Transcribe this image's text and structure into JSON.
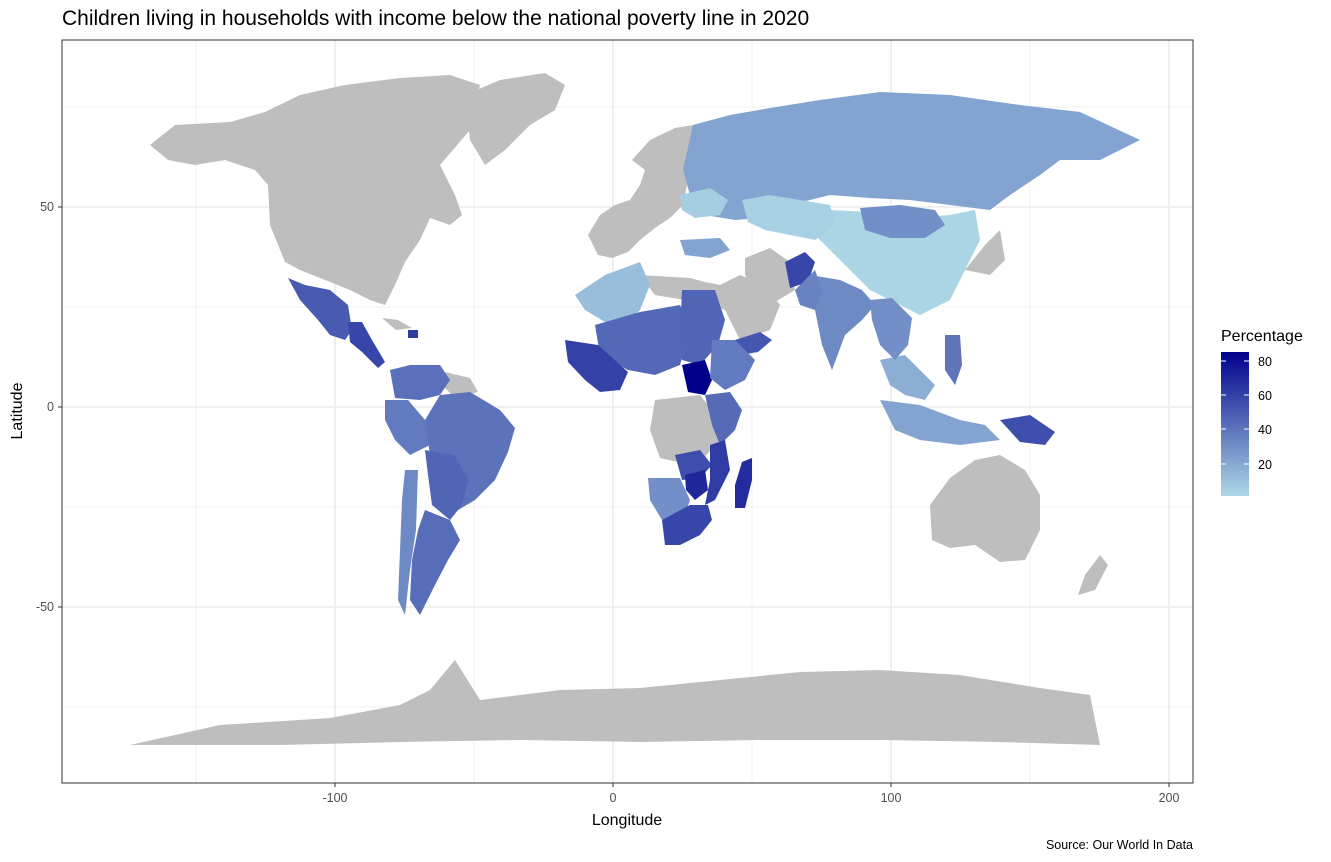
{
  "chart_data": {
    "type": "choropleth-map",
    "title": "Children living in households with income below the national poverty line in 2020",
    "xlabel": "Longitude",
    "ylabel": "Latitude",
    "caption": "Source: Our World In Data",
    "xlim": [
      -200,
      208
    ],
    "ylim": [
      -90,
      84
    ],
    "x_ticks": [
      -100,
      0,
      100,
      200
    ],
    "x_tick_labels": [
      "-100",
      "0",
      "100",
      "200"
    ],
    "y_ticks": [
      50,
      0,
      -50
    ],
    "y_tick_labels": [
      "50",
      "0",
      "-50"
    ],
    "grid": "on",
    "legend": {
      "title": "Percentage",
      "placement": "right",
      "ticks": [
        80,
        60,
        40,
        20
      ],
      "tick_labels": [
        "80",
        "60",
        "40",
        "20"
      ],
      "range": [
        2,
        85
      ],
      "color_low": "#add8e6",
      "color_high": "#00008b"
    },
    "nodata_color": "#bebebe",
    "regions": [
      {
        "name": "Mexico",
        "value": 50
      },
      {
        "name": "Central America",
        "value": 58
      },
      {
        "name": "Haiti",
        "value": 62
      },
      {
        "name": "Colombia / Venezuela",
        "value": 42
      },
      {
        "name": "Peru / Ecuador",
        "value": 38
      },
      {
        "name": "Brazil",
        "value": 41
      },
      {
        "name": "Bolivia / Paraguay",
        "value": 46
      },
      {
        "name": "Argentina",
        "value": 43
      },
      {
        "name": "Chile",
        "value": 32
      },
      {
        "name": "Russia",
        "value": 22
      },
      {
        "name": "China",
        "value": 3
      },
      {
        "name": "Mongolia",
        "value": 30
      },
      {
        "name": "Kazakhstan",
        "value": 5
      },
      {
        "name": "Ukraine",
        "value": 6
      },
      {
        "name": "Turkey",
        "value": 22
      },
      {
        "name": "India",
        "value": 32
      },
      {
        "name": "Afghanistan",
        "value": 58
      },
      {
        "name": "Pakistan",
        "value": 35
      },
      {
        "name": "Yemen",
        "value": 52
      },
      {
        "name": "Western Sahara / Morocco region",
        "value": 12
      },
      {
        "name": "Sahel",
        "value": 45
      },
      {
        "name": "Sudan",
        "value": 46
      },
      {
        "name": "West Africa coast",
        "value": 60
      },
      {
        "name": "South Sudan",
        "value": 85
      },
      {
        "name": "Ethiopia / Somalia",
        "value": 38
      },
      {
        "name": "Kenya / Tanzania",
        "value": 44
      },
      {
        "name": "Zambia",
        "value": 55
      },
      {
        "name": "Zimbabwe",
        "value": 70
      },
      {
        "name": "Mozambique",
        "value": 62
      },
      {
        "name": "Madagascar",
        "value": 68
      },
      {
        "name": "Namibia / Botswana",
        "value": 30
      },
      {
        "name": "South Africa",
        "value": 58
      },
      {
        "name": "Southeast Asia",
        "value": 18
      },
      {
        "name": "Philippines",
        "value": 40
      },
      {
        "name": "Papua New Guinea",
        "value": 55
      },
      {
        "name": "Indonesia",
        "value": 22
      },
      {
        "name": "Myanmar / Thailand",
        "value": 30
      }
    ]
  }
}
